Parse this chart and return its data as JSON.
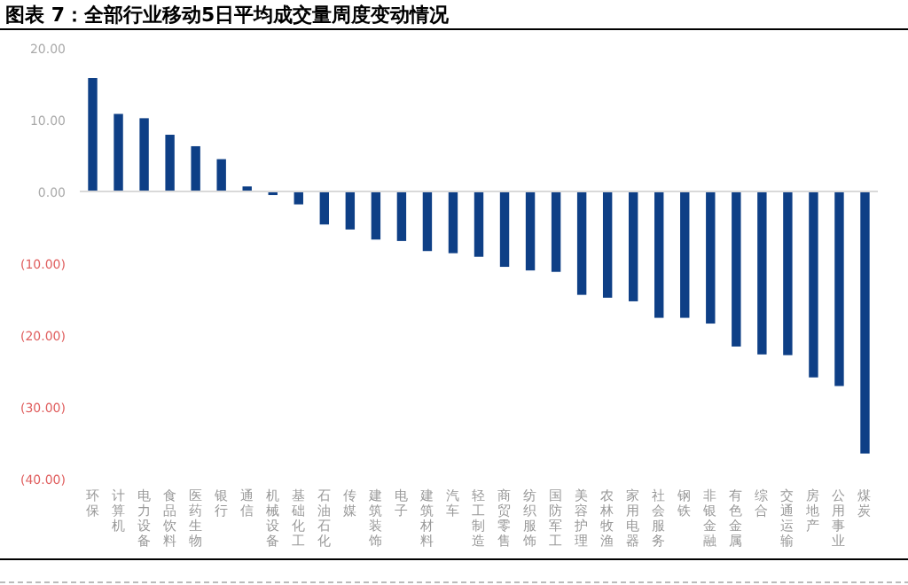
{
  "chart_data": {
    "type": "bar",
    "title": "图表 7：全部行业移动5日平均成交量周度变动情况",
    "categories": [
      "环保",
      "计算机",
      "电力设备",
      "食品饮料",
      "医药生物",
      "银行",
      "通信",
      "机械设备",
      "基础化工",
      "石油石化",
      "传媒",
      "建筑装饰",
      "电子",
      "建筑材料",
      "汽车",
      "轻工制造",
      "商贸零售",
      "纺织服饰",
      "国防军工",
      "美容护理",
      "农林牧渔",
      "家用电器",
      "社会服务",
      "钢铁",
      "非银金融",
      "有色金属",
      "综合",
      "交通运输",
      "房地产",
      "公用事业",
      "煤炭"
    ],
    "values": [
      15.8,
      10.8,
      10.2,
      7.9,
      6.3,
      4.5,
      0.7,
      -0.5,
      -1.8,
      -4.6,
      -5.3,
      -6.7,
      -6.9,
      -8.3,
      -8.6,
      -9.1,
      -10.5,
      -11.0,
      -11.2,
      -14.4,
      -14.8,
      -15.3,
      -17.6,
      -17.6,
      -18.4,
      -21.6,
      -22.7,
      -22.8,
      -25.9,
      -27.1,
      -36.5
    ],
    "color": "#0e3f86",
    "ylim": [
      -40,
      20
    ],
    "yticks": [
      {
        "value": -40,
        "label": "(40.00)"
      },
      {
        "value": -30,
        "label": "(30.00)"
      },
      {
        "value": -20,
        "label": "(20.00)"
      },
      {
        "value": -10,
        "label": "(10.00)"
      },
      {
        "value": 0,
        "label": "0.00"
      },
      {
        "value": 10,
        "label": "10.00"
      },
      {
        "value": 20,
        "label": "20.00"
      }
    ],
    "orientation": "vertical"
  }
}
